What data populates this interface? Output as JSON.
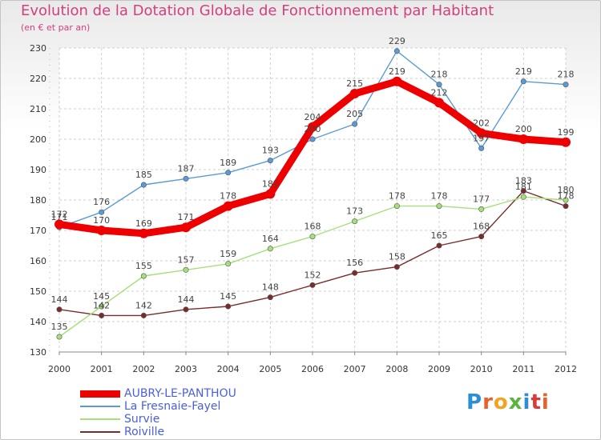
{
  "header": {
    "title": "Evolution de la Dotation Globale de Fonctionnement par Habitant",
    "subtitle": "(en € et par an)"
  },
  "logo": {
    "text": "Proxiti",
    "colors": [
      "#2b8fd6",
      "#e8612c",
      "#f2a31f",
      "#5bb43c",
      "#2b8fd6",
      "#d93b3b",
      "#e8612c"
    ]
  },
  "chart_data": {
    "type": "line",
    "title": "Evolution de la Dotation Globale de Fonctionnement par Habitant",
    "subtitle": "(en € et par an)",
    "x": [
      "2000",
      "2001",
      "2002",
      "2003",
      "2004",
      "2005",
      "2006",
      "2007",
      "2008",
      "2009",
      "2010",
      "2011",
      "2012"
    ],
    "ylim": [
      130,
      230
    ],
    "yticks": [
      130,
      140,
      150,
      160,
      170,
      180,
      190,
      200,
      210,
      220,
      230
    ],
    "grid": true,
    "legend": "bottom-left",
    "series": [
      {
        "name": "AUBRY-LE-PANTHOU",
        "color": "#ee0000",
        "values": [
          172,
          170,
          169,
          171,
          178,
          182,
          204,
          215,
          219,
          212,
          202,
          200,
          199
        ]
      },
      {
        "name": "La Fresnaie-Fayel",
        "color": "#5b9bd5",
        "values": [
          171,
          176,
          185,
          187,
          189,
          193,
          200,
          205,
          229,
          218,
          197,
          219,
          218
        ]
      },
      {
        "name": "Survie",
        "color": "#a6e07a",
        "values": [
          135,
          145,
          155,
          157,
          159,
          164,
          168,
          173,
          178,
          178,
          177,
          181,
          180
        ]
      },
      {
        "name": "Roiville",
        "color": "#7a2b2b",
        "values": [
          144,
          142,
          142,
          144,
          145,
          148,
          152,
          156,
          158,
          165,
          168,
          183,
          178
        ]
      }
    ]
  }
}
